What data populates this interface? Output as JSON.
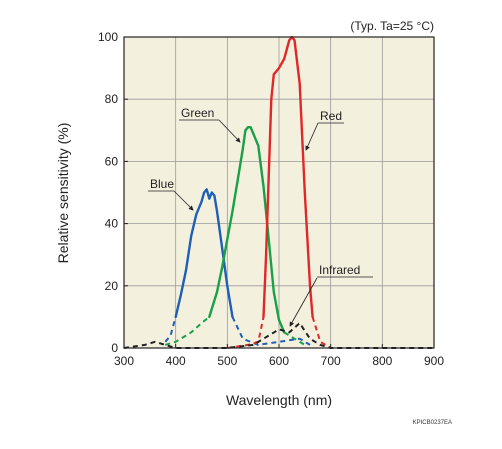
{
  "chart_data": {
    "type": "line",
    "title": "",
    "xlabel": "Wavelength (nm)",
    "ylabel": "Relative sensitivity (%)",
    "xlim": [
      300,
      900
    ],
    "ylim": [
      0,
      100
    ],
    "xticks": [
      300,
      400,
      500,
      600,
      700,
      800,
      900
    ],
    "yticks": [
      0,
      20,
      40,
      60,
      80,
      100
    ],
    "grid": true,
    "legend": "none",
    "annotation": "(Typ. Ta=25 °C)",
    "code": "KPICB0237EA",
    "series": [
      {
        "name": "Blue",
        "color": "#1f5fb5",
        "solid": [
          [
            400,
            10
          ],
          [
            410,
            17
          ],
          [
            420,
            25
          ],
          [
            430,
            36
          ],
          [
            440,
            43
          ],
          [
            450,
            47
          ],
          [
            455,
            50
          ],
          [
            460,
            51
          ],
          [
            465,
            48
          ],
          [
            470,
            50
          ],
          [
            475,
            49
          ],
          [
            480,
            44
          ],
          [
            490,
            32
          ],
          [
            500,
            20
          ],
          [
            510,
            10
          ]
        ],
        "dashed": [
          [
            380,
            2
          ],
          [
            390,
            4
          ],
          [
            400,
            10
          ]
        ],
        "dashed_tail": [
          [
            510,
            10
          ],
          [
            530,
            3
          ],
          [
            560,
            1
          ],
          [
            600,
            2
          ],
          [
            640,
            3
          ],
          [
            660,
            1
          ]
        ]
      },
      {
        "name": "Green",
        "color": "#1aa048",
        "solid": [
          [
            465,
            10
          ],
          [
            480,
            18
          ],
          [
            490,
            26
          ],
          [
            500,
            35
          ],
          [
            510,
            44
          ],
          [
            520,
            54
          ],
          [
            530,
            64
          ],
          [
            535,
            70
          ],
          [
            540,
            71
          ],
          [
            545,
            71
          ],
          [
            550,
            69
          ],
          [
            560,
            65
          ],
          [
            570,
            52
          ],
          [
            580,
            35
          ],
          [
            590,
            18
          ],
          [
            600,
            9
          ],
          [
            610,
            5
          ]
        ],
        "dashed": [
          [
            380,
            1
          ],
          [
            400,
            2
          ],
          [
            430,
            5
          ],
          [
            450,
            8
          ],
          [
            465,
            10
          ]
        ],
        "dashed_tail": [
          [
            610,
            5
          ],
          [
            630,
            3
          ],
          [
            650,
            1
          ]
        ]
      },
      {
        "name": "Red",
        "color": "#e02828",
        "solid": [
          [
            570,
            10
          ],
          [
            575,
            30
          ],
          [
            580,
            55
          ],
          [
            585,
            80
          ],
          [
            590,
            88
          ],
          [
            600,
            90
          ],
          [
            610,
            93
          ],
          [
            620,
            99
          ],
          [
            625,
            100
          ],
          [
            630,
            99
          ],
          [
            640,
            85
          ],
          [
            650,
            50
          ],
          [
            660,
            20
          ],
          [
            665,
            10
          ]
        ],
        "dashed": [
          [
            500,
            0
          ],
          [
            540,
            1
          ],
          [
            560,
            2
          ],
          [
            570,
            10
          ]
        ],
        "dashed_tail": [
          [
            665,
            10
          ],
          [
            680,
            2
          ],
          [
            700,
            0
          ]
        ]
      },
      {
        "name": "Infrared",
        "color": "#222222",
        "dashed": [
          [
            300,
            0
          ],
          [
            340,
            1
          ],
          [
            360,
            2
          ],
          [
            380,
            1
          ],
          [
            400,
            0
          ],
          [
            450,
            0
          ],
          [
            500,
            0
          ],
          [
            550,
            1
          ],
          [
            580,
            4
          ],
          [
            600,
            6
          ],
          [
            620,
            5
          ],
          [
            640,
            8
          ],
          [
            660,
            3
          ],
          [
            680,
            1
          ],
          [
            700,
            0
          ],
          [
            750,
            0
          ],
          [
            800,
            0
          ],
          [
            850,
            0
          ],
          [
            900,
            0
          ]
        ]
      }
    ],
    "labels": [
      {
        "text": "Blue",
        "series": 0,
        "at": [
          435,
          52
        ]
      },
      {
        "text": "Green",
        "series": 1,
        "at": [
          530,
          72
        ]
      },
      {
        "text": "Red",
        "series": 2,
        "at": [
          650,
          70
        ]
      },
      {
        "text": "Infrared",
        "series": 3,
        "at": [
          690,
          20
        ]
      }
    ]
  }
}
